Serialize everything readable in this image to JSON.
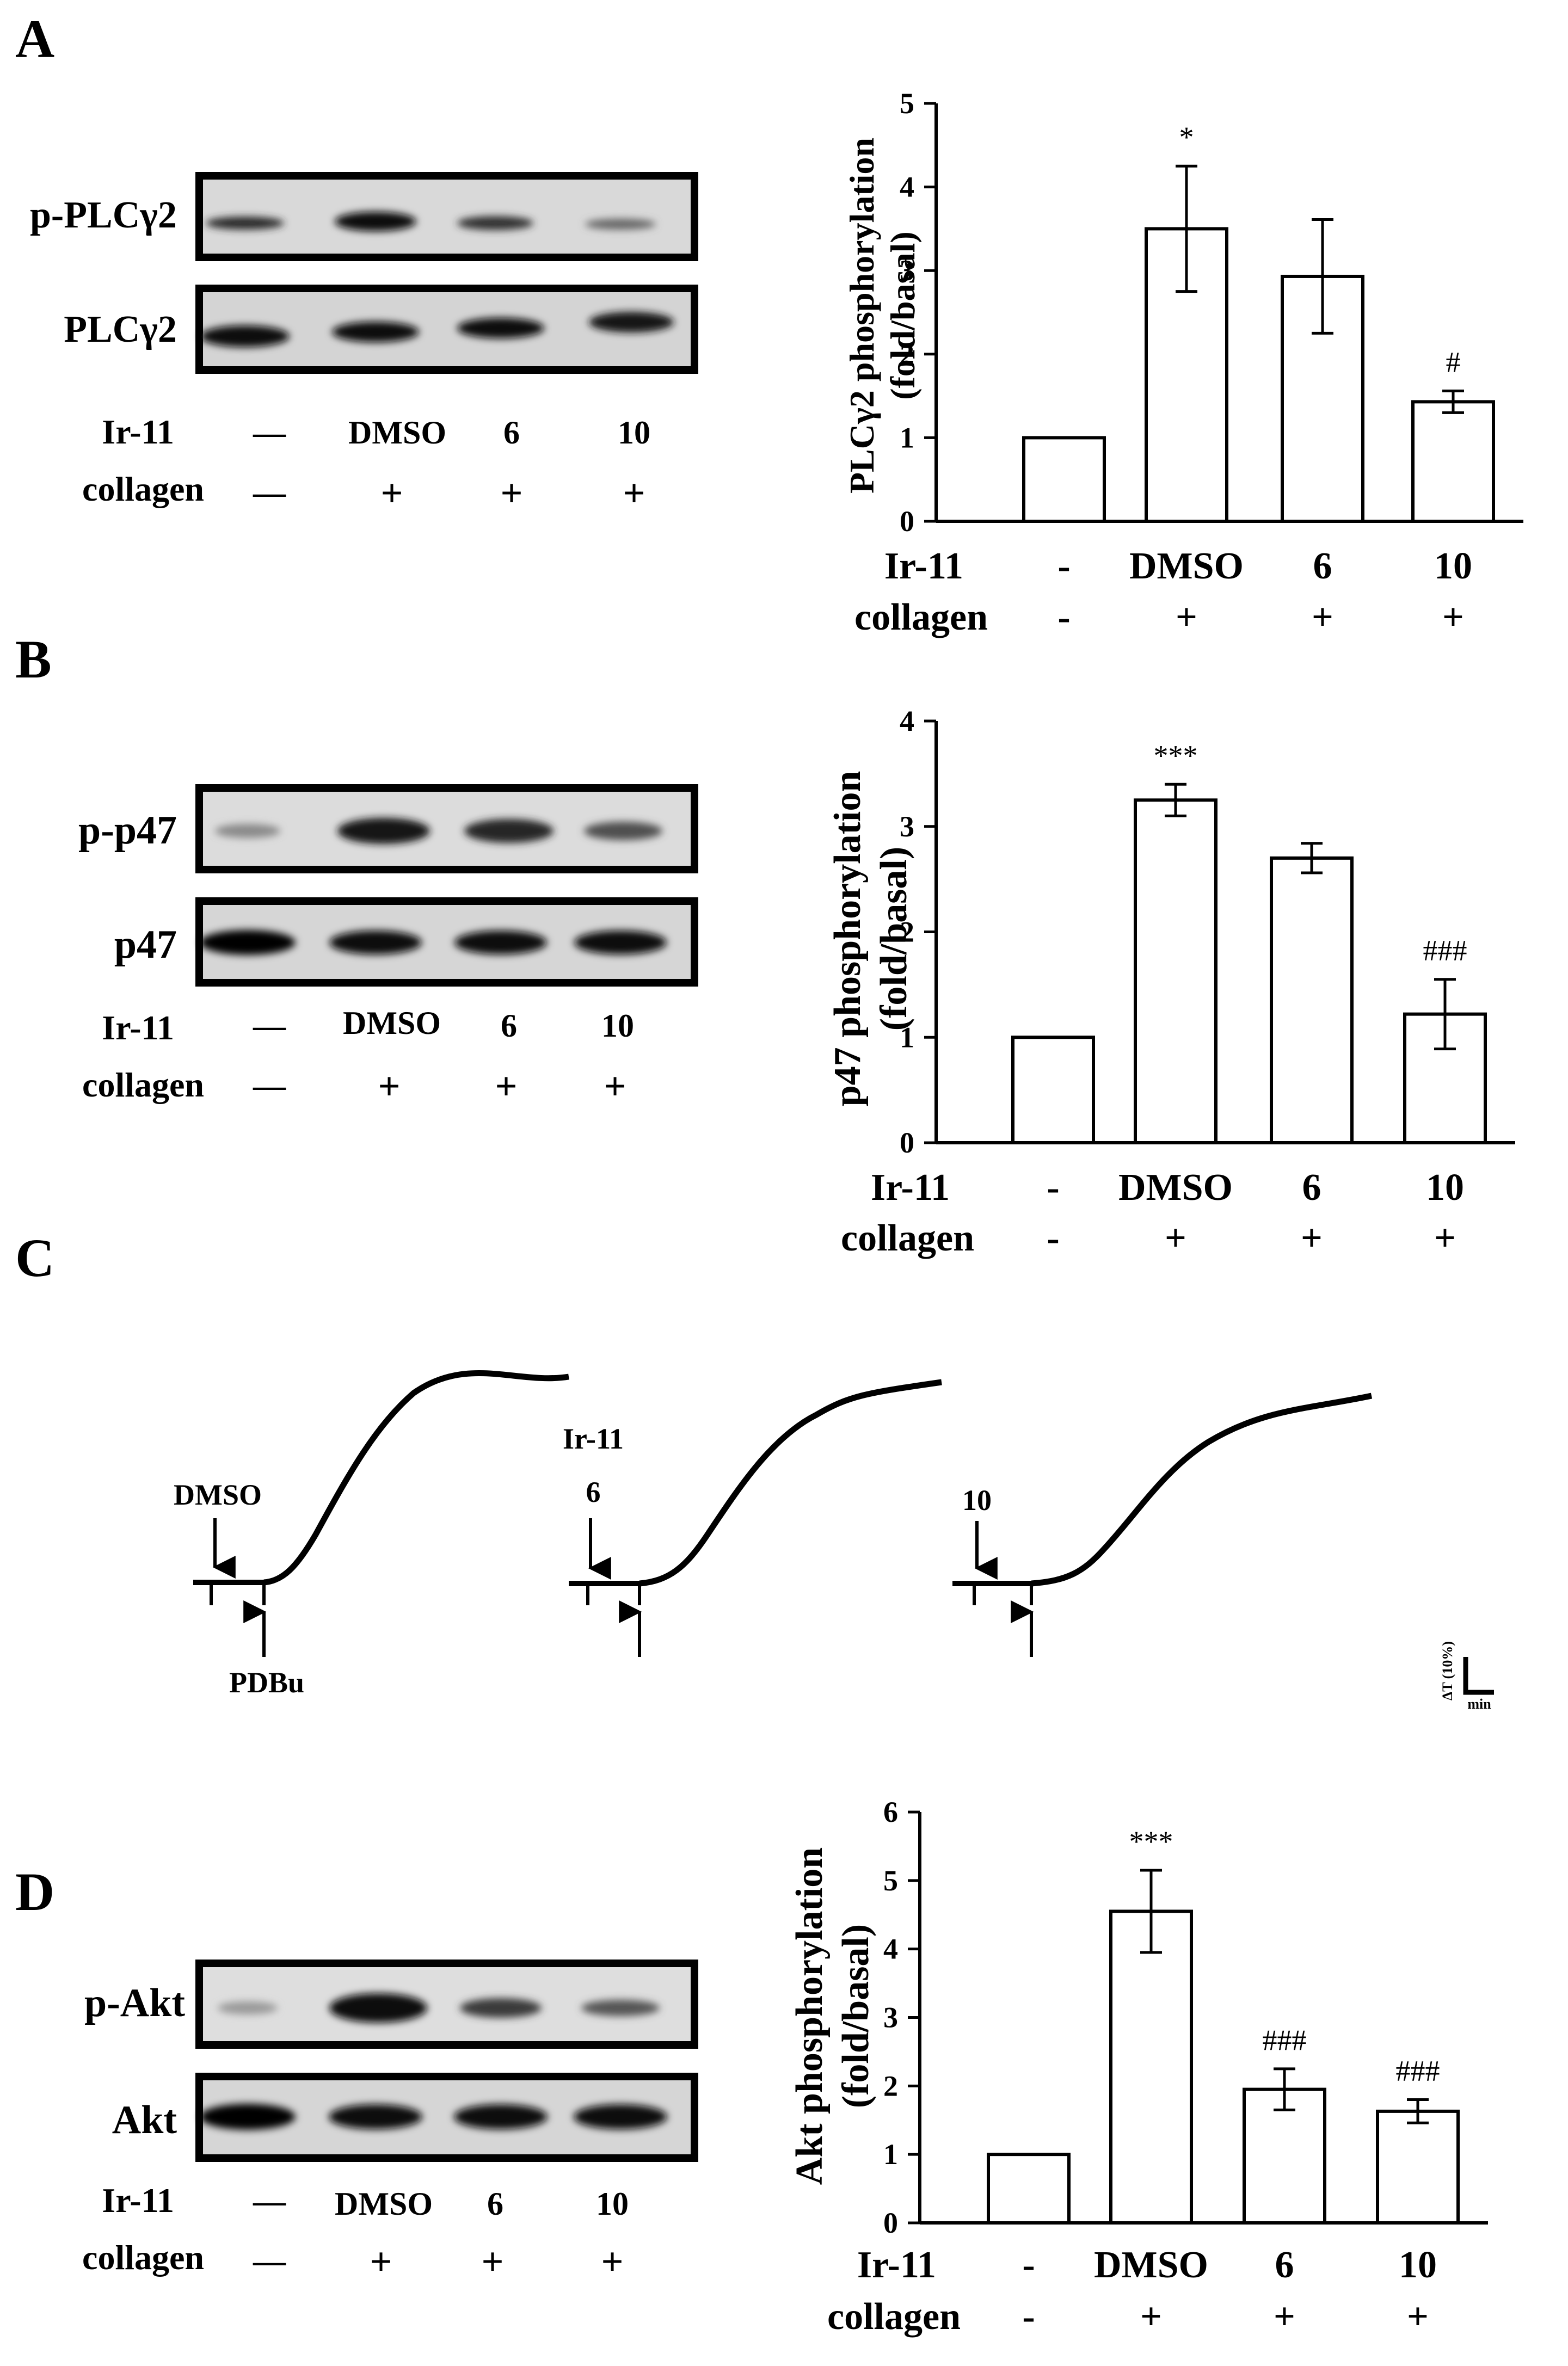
{
  "panels": {
    "A": {
      "letter": "A",
      "blot": {
        "band_labels": [
          "p-PLCγ2",
          "PLCγ2"
        ],
        "row_labels": [
          "Ir-11",
          "collagen"
        ],
        "ir11": [
          "—",
          "DMSO",
          "6",
          "10"
        ],
        "collagen": [
          "—",
          "+",
          "+",
          "+"
        ]
      },
      "chart": {
        "ylabel_line1": "PLCγ2 phosphorylation",
        "ylabel_line2": "(fold/basal)",
        "row_labels": [
          "Ir-11",
          "collagen"
        ],
        "ir11": [
          "-",
          "DMSO",
          "6",
          "10"
        ],
        "collagen": [
          "-",
          "+",
          "+",
          "+"
        ]
      }
    },
    "B": {
      "letter": "B",
      "blot": {
        "band_labels": [
          "p-p47",
          "p47"
        ],
        "row_labels": [
          "Ir-11",
          "collagen"
        ],
        "ir11": [
          "—",
          "DMSO",
          "6",
          "10"
        ],
        "collagen": [
          "—",
          "+",
          "+",
          "+"
        ]
      },
      "chart": {
        "ylabel_line1": "p47 phosphorylation",
        "ylabel_line2": "(fold/basal)",
        "row_labels": [
          "Ir-11",
          "collagen"
        ],
        "ir11": [
          "-",
          "DMSO",
          "6",
          "10"
        ],
        "collagen": [
          "-",
          "+",
          "+",
          "+"
        ]
      }
    },
    "C": {
      "letter": "C",
      "traces": [
        {
          "top_label": "DMSO",
          "top_label2": "",
          "bottom_label": "PDBu"
        },
        {
          "top_label": "Ir-11",
          "top_label2": "6",
          "bottom_label": ""
        },
        {
          "top_label": "10",
          "top_label2": "",
          "bottom_label": ""
        }
      ],
      "scale": {
        "y": "ΔT (10%)",
        "x": "min"
      }
    },
    "D": {
      "letter": "D",
      "blot": {
        "band_labels": [
          "p-Akt",
          "Akt"
        ],
        "row_labels": [
          "Ir-11",
          "collagen"
        ],
        "ir11": [
          "—",
          "DMSO",
          "6",
          "10"
        ],
        "collagen": [
          "—",
          "+",
          "+",
          "+"
        ]
      },
      "chart": {
        "ylabel_line1": "Akt phosphorylation",
        "ylabel_line2": "(fold/basal)",
        "row_labels": [
          "Ir-11",
          "collagen"
        ],
        "ir11": [
          "-",
          "DMSO",
          "6",
          "10"
        ],
        "collagen": [
          "-",
          "+",
          "+",
          "+"
        ]
      }
    }
  },
  "chart_data": [
    {
      "type": "bar",
      "panel": "A",
      "ylabel": "PLCγ2 phosphorylation (fold/basal)",
      "categories": [
        "-",
        "DMSO",
        "6",
        "10"
      ],
      "values": [
        1.0,
        3.5,
        2.93,
        1.43
      ],
      "errors": [
        0,
        0.75,
        0.68,
        0.13
      ],
      "annotations": [
        "",
        "*",
        "",
        "#"
      ],
      "ylim": [
        0,
        5
      ],
      "yticks": [
        0,
        1,
        2,
        3,
        4,
        5
      ]
    },
    {
      "type": "bar",
      "panel": "B",
      "ylabel": "p47 phosphorylation (fold/basal)",
      "categories": [
        "-",
        "DMSO",
        "6",
        "10"
      ],
      "values": [
        1.0,
        3.25,
        2.7,
        1.22
      ],
      "errors": [
        0,
        0.15,
        0.14,
        0.33
      ],
      "annotations": [
        "",
        "***",
        "",
        "###"
      ],
      "ylim": [
        0,
        4
      ],
      "yticks": [
        0,
        1,
        2,
        3,
        4
      ]
    },
    {
      "type": "bar",
      "panel": "D",
      "ylabel": "Akt phosphorylation (fold/basal)",
      "categories": [
        "-",
        "DMSO",
        "6",
        "10"
      ],
      "values": [
        1.0,
        4.55,
        1.95,
        1.63
      ],
      "errors": [
        0,
        0.6,
        0.3,
        0.17
      ],
      "annotations": [
        "",
        "***",
        "###",
        "###"
      ],
      "ylim": [
        0,
        6
      ],
      "yticks": [
        0,
        1,
        2,
        3,
        4,
        5,
        6
      ]
    }
  ]
}
